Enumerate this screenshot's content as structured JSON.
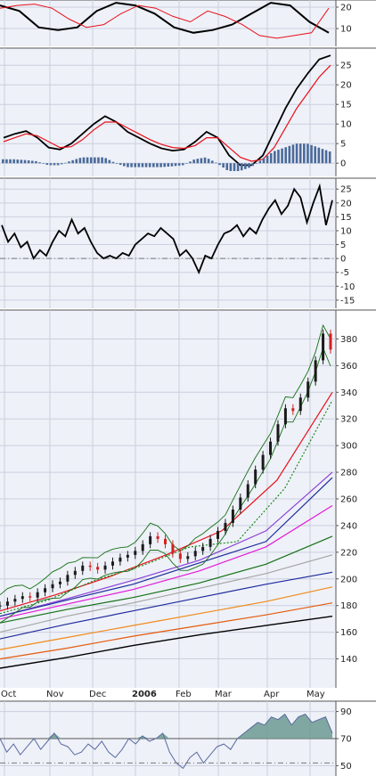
{
  "colors": {
    "panel_bg": "#eef1f8",
    "grid": "#c9cfdd",
    "border": "#555555",
    "black": "#000000",
    "red": "#e8101a",
    "green": "#1d8a1d",
    "dark_green": "#157015",
    "navy": "#1f2a9c",
    "magenta": "#e21bd6",
    "purple": "#8a40d8",
    "gray": "#a6a6a6",
    "orange": "#f08a1a",
    "dark_orange": "#e55b0c",
    "bar_blue": "#4a6a9a",
    "area_fill": "#6c9a92",
    "rsi_line": "#5a6aa0",
    "candle_up": "#1a1a1a",
    "candle_down": "#d42020"
  },
  "chart_data": [
    {
      "panel": "top",
      "type": "line",
      "y_ticks": [
        "20",
        "10"
      ],
      "series": [
        {
          "color": "black",
          "y": [
            26,
            22,
            10,
            8,
            10,
            22,
            28,
            26,
            20,
            10,
            6,
            8,
            12,
            20,
            28,
            26,
            14,
            6
          ]
        },
        {
          "color": "red",
          "y": [
            24,
            26,
            27,
            24,
            16,
            10,
            12,
            20,
            26,
            24,
            18,
            14,
            22,
            18,
            12,
            4,
            2,
            4,
            6,
            24
          ]
        }
      ]
    },
    {
      "panel": "macd",
      "type": "line",
      "y_ticks": [
        "25",
        "20",
        "15",
        "10",
        "5",
        "0"
      ],
      "ylim": [
        -2,
        28
      ],
      "series": [
        {
          "color": "black",
          "y": [
            6.5,
            7.5,
            8.2,
            6.5,
            4,
            3.5,
            5,
            7.5,
            10,
            12,
            10.5,
            8,
            6.5,
            5,
            3.8,
            3.2,
            3.5,
            5.5,
            8,
            6.5,
            2,
            -0.5,
            -0.5,
            2,
            8,
            14,
            19,
            23,
            26.5,
            27.5
          ]
        },
        {
          "color": "red",
          "y": [
            5.5,
            6.5,
            7.5,
            7,
            5.5,
            4,
            4.2,
            6,
            8.5,
            10.5,
            10.5,
            9,
            7.5,
            6,
            4.8,
            4,
            3.8,
            4.5,
            6.5,
            6.5,
            4,
            1.5,
            0.5,
            1,
            4,
            9,
            14,
            18,
            22,
            25
          ]
        },
        {
          "color": "bar_blue",
          "type": "histogram",
          "y": [
            1,
            1,
            0.8,
            0.5,
            -0.5,
            -0.5,
            0.6,
            1.5,
            1.5,
            1.5,
            0,
            -1,
            -1,
            -1,
            -1,
            -0.8,
            -0.5,
            1,
            1.5,
            0,
            -2,
            -2,
            -1,
            1,
            3,
            4,
            5,
            5,
            4,
            3
          ]
        }
      ]
    },
    {
      "panel": "momentum",
      "type": "line",
      "y_ticks": [
        "25",
        "20",
        "15",
        "10",
        "5",
        "0",
        "-5",
        "-10",
        "-15"
      ],
      "ylim": [
        -16,
        27
      ],
      "series": [
        {
          "color": "black",
          "y": [
            12,
            6,
            9,
            4,
            6,
            0,
            3,
            1,
            6,
            10,
            8,
            14,
            9,
            11,
            6,
            2,
            0,
            1,
            0,
            2,
            1,
            5,
            7,
            9,
            8,
            11,
            9,
            7,
            1,
            3,
            0,
            -5,
            1,
            0,
            5,
            9,
            10,
            12,
            8,
            11,
            9,
            14,
            18,
            21,
            16,
            19,
            25,
            22,
            13,
            20,
            26,
            12,
            21
          ]
        }
      ]
    },
    {
      "panel": "price",
      "type": "line",
      "y_ticks": [
        "380",
        "360",
        "340",
        "320",
        "300",
        "280",
        "260",
        "240",
        "220",
        "200",
        "180",
        "160",
        "140"
      ],
      "x_ticks": [
        "Oct",
        "Nov",
        "Dec",
        "2006",
        "Feb",
        "Mar",
        "Apr",
        "May"
      ],
      "ylim": [
        125,
        395
      ],
      "price": [
        180,
        183,
        185,
        187,
        186,
        190,
        193,
        196,
        198,
        203,
        206,
        210,
        209,
        207,
        210,
        213,
        216,
        218,
        221,
        226,
        232,
        230,
        226,
        219,
        215,
        217,
        221,
        224,
        230,
        236,
        242,
        252,
        261,
        271,
        282,
        293,
        303,
        316,
        328,
        326,
        336,
        348,
        364,
        384,
        372
      ],
      "series": [
        {
          "color": "black",
          "y": [
            133,
            141,
            150,
            158,
            165,
            172
          ]
        },
        {
          "color": "dark_orange",
          "y": [
            140,
            148,
            157,
            165,
            173,
            182
          ]
        },
        {
          "color": "orange",
          "y": [
            147,
            156,
            165,
            174,
            183,
            194
          ]
        },
        {
          "color": "navy",
          "y": [
            155,
            166,
            176,
            186,
            196,
            205
          ]
        },
        {
          "color": "gray",
          "y": [
            160,
            172,
            182,
            193,
            204,
            218
          ]
        },
        {
          "color": "dark_green",
          "y": [
            167,
            177,
            186,
            197,
            211,
            232
          ]
        },
        {
          "color": "magenta",
          "y": [
            170,
            181,
            192,
            206,
            224,
            255
          ]
        },
        {
          "color": "purple",
          "y": [
            172,
            185,
            199,
            214,
            236,
            280
          ]
        },
        {
          "color": "navy",
          "y": [
            172,
            184,
            196,
            212,
            228,
            276
          ]
        },
        {
          "color": "red",
          "y": [
            176,
            188,
            202,
            218,
            236,
            274,
            340
          ]
        },
        {
          "color": "green",
          "dashed": true,
          "y": [
            174,
            184,
            199,
            210,
            224,
            228,
            268,
            334
          ]
        }
      ]
    },
    {
      "panel": "rsi",
      "type": "area",
      "y_ticks": [
        "90",
        "70",
        "50"
      ],
      "ylim": [
        45,
        95
      ],
      "series": [
        {
          "color": "rsi_line",
          "y": [
            70,
            60,
            66,
            58,
            64,
            70,
            62,
            68,
            74,
            66,
            64,
            58,
            60,
            66,
            62,
            68,
            60,
            56,
            62,
            70,
            66,
            72,
            68,
            70,
            74,
            60,
            52,
            48,
            56,
            60,
            52,
            58,
            64,
            66,
            62,
            70,
            74,
            78,
            82,
            80,
            86,
            84,
            88,
            80,
            86,
            88,
            82,
            84,
            86,
            74
          ]
        }
      ]
    }
  ]
}
